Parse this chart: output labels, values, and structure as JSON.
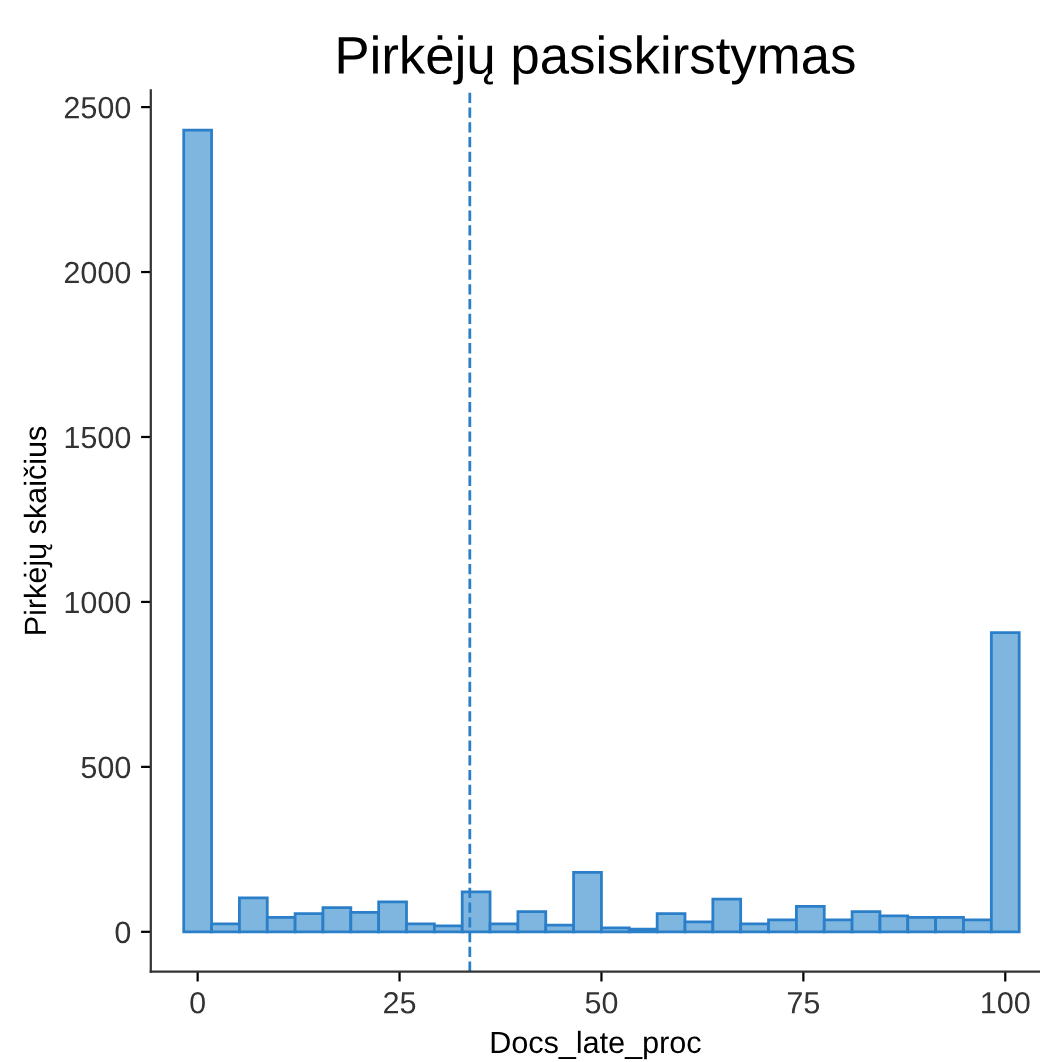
{
  "chart_data": {
    "type": "histogram",
    "title": "Pirkėjų pasiskirstymas",
    "xlabel": "Docs_late_proc",
    "ylabel": "Pirkėjų skaičius",
    "bins": [
      -1.724,
      1.724,
      5.172,
      8.621,
      12.069,
      15.517,
      18.966,
      22.414,
      25.862,
      29.31,
      32.759,
      36.207,
      39.655,
      43.103,
      46.552,
      50,
      53.448,
      56.897,
      60.345,
      63.793,
      67.241,
      70.69,
      74.138,
      77.586,
      81.034,
      84.483,
      87.931,
      91.379,
      94.828,
      98.276,
      101.724
    ],
    "values": [
      2430,
      24,
      103,
      44,
      55,
      73,
      59,
      91,
      24,
      18,
      121,
      24,
      61,
      20,
      180,
      12,
      8,
      55,
      30,
      99,
      24,
      36,
      77,
      36,
      61,
      48,
      44,
      44,
      36,
      907
    ],
    "color": "#7fb6e0",
    "xlim": [
      -5.8,
      104.3
    ],
    "ylim": [
      -121,
      2551
    ],
    "xticks": [
      0,
      25,
      50,
      75,
      100
    ],
    "yticks": [
      0,
      500,
      1000,
      1500,
      2000,
      2500
    ],
    "ref_lines": [
      {
        "axis": "x",
        "value": 33.7,
        "color": "#2a7fc8",
        "line_style": "dashed"
      }
    ],
    "grid": false
  }
}
